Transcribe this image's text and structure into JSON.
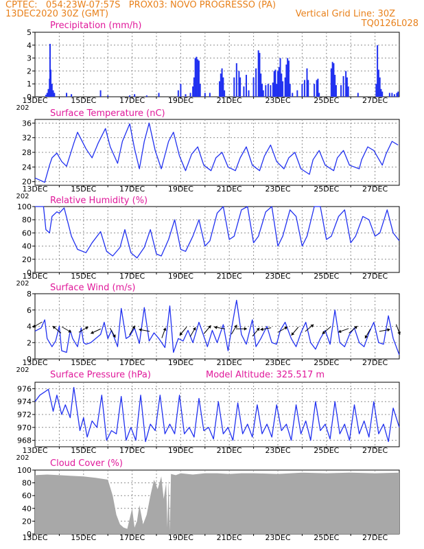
{
  "header": {
    "left_line1": "CPTEC:   054:23W-07:57S   PROX03: NOVO PROGRESSO (PA)",
    "left_line2": "13DEC2020 30Z (GMT)",
    "right_line2": "Vertical Grid Line: 30Z",
    "right_line3": "TQ0126L028",
    "year_fragment": "202"
  },
  "colors": {
    "header": "#e8801a",
    "title": "#e0189a",
    "series": "#2030f0",
    "cloud": "#a8a8a8",
    "grid": "#8c8c8c"
  },
  "x_axis": {
    "tick_labels": [
      "13DEC",
      "15DEC",
      "17DEC",
      "19DEC",
      "21DEC",
      "23DEC",
      "25DEC",
      "27DEC"
    ],
    "tick_days": [
      0,
      2,
      4,
      6,
      8,
      10,
      12,
      14
    ],
    "days_shown": 15
  },
  "chart_data": [
    {
      "type": "bar",
      "id": "precip",
      "title": "Precipitation  (mm/h)",
      "ylim": [
        0,
        5
      ],
      "yticks": [
        "0",
        "1",
        "2",
        "3",
        "4",
        "5"
      ],
      "x_unit": "days after 13DEC 00Z",
      "values": [
        [
          0.45,
          0.15
        ],
        [
          0.5,
          0.3
        ],
        [
          0.55,
          0.6
        ],
        [
          0.6,
          1.4
        ],
        [
          0.62,
          4.1
        ],
        [
          0.65,
          2.1
        ],
        [
          0.7,
          1.0
        ],
        [
          0.75,
          0.5
        ],
        [
          0.8,
          0.3
        ],
        [
          1.3,
          0.3
        ],
        [
          1.5,
          0.2
        ],
        [
          2.7,
          0.5
        ],
        [
          3.0,
          0.1
        ],
        [
          3.9,
          0.1
        ],
        [
          4.1,
          0.2
        ],
        [
          4.6,
          0.1
        ],
        [
          5.1,
          0.3
        ],
        [
          5.9,
          0.5
        ],
        [
          6.0,
          1.0
        ],
        [
          6.2,
          0.2
        ],
        [
          6.4,
          0.3
        ],
        [
          6.5,
          0.8
        ],
        [
          6.55,
          1.5
        ],
        [
          6.6,
          3.0
        ],
        [
          6.65,
          3.1
        ],
        [
          6.7,
          2.9
        ],
        [
          6.75,
          2.8
        ],
        [
          6.8,
          1.0
        ],
        [
          7.0,
          0.3
        ],
        [
          7.2,
          0.3
        ],
        [
          7.6,
          1.2
        ],
        [
          7.65,
          1.8
        ],
        [
          7.7,
          2.2
        ],
        [
          7.75,
          1.5
        ],
        [
          7.8,
          0.5
        ],
        [
          8.2,
          1.5
        ],
        [
          8.3,
          2.6
        ],
        [
          8.4,
          2.0
        ],
        [
          8.45,
          1.5
        ],
        [
          8.6,
          0.8
        ],
        [
          8.7,
          1.7
        ],
        [
          8.8,
          0.5
        ],
        [
          9.0,
          1.5
        ],
        [
          9.1,
          2.2
        ],
        [
          9.2,
          3.6
        ],
        [
          9.25,
          3.4
        ],
        [
          9.3,
          1.8
        ],
        [
          9.35,
          1.0
        ],
        [
          9.4,
          0.5
        ],
        [
          9.5,
          0.9
        ],
        [
          9.6,
          1.0
        ],
        [
          9.7,
          0.9
        ],
        [
          9.8,
          1.1
        ],
        [
          9.85,
          2.0
        ],
        [
          9.9,
          2.1
        ],
        [
          9.95,
          1.0
        ],
        [
          10.0,
          2.0
        ],
        [
          10.05,
          2.3
        ],
        [
          10.1,
          3.0
        ],
        [
          10.15,
          1.8
        ],
        [
          10.2,
          1.2
        ],
        [
          10.3,
          1.5
        ],
        [
          10.35,
          2.5
        ],
        [
          10.4,
          3.0
        ],
        [
          10.45,
          2.8
        ],
        [
          10.5,
          1.0
        ],
        [
          10.6,
          0.3
        ],
        [
          10.8,
          0.5
        ],
        [
          11.0,
          1.0
        ],
        [
          11.1,
          1.3
        ],
        [
          11.2,
          2.2
        ],
        [
          11.25,
          1.3
        ],
        [
          11.5,
          1.0
        ],
        [
          11.6,
          1.3
        ],
        [
          11.65,
          1.4
        ],
        [
          11.7,
          0.3
        ],
        [
          12.2,
          2.2
        ],
        [
          12.25,
          2.7
        ],
        [
          12.3,
          2.6
        ],
        [
          12.35,
          1.7
        ],
        [
          12.4,
          0.9
        ],
        [
          12.6,
          0.9
        ],
        [
          12.7,
          1.6
        ],
        [
          12.8,
          2.0
        ],
        [
          12.85,
          1.5
        ],
        [
          12.9,
          0.8
        ],
        [
          13.3,
          0.3
        ],
        [
          14.05,
          1.0
        ],
        [
          14.1,
          4.0
        ],
        [
          14.15,
          2.1
        ],
        [
          14.2,
          1.5
        ],
        [
          14.25,
          0.6
        ],
        [
          14.3,
          0.4
        ],
        [
          14.6,
          0.3
        ],
        [
          14.7,
          0.3
        ],
        [
          14.8,
          0.2
        ],
        [
          14.9,
          0.3
        ],
        [
          14.95,
          0.4
        ]
      ]
    },
    {
      "type": "line",
      "id": "temp",
      "title": "Surface Temperature (nC)",
      "ylim": [
        19,
        37
      ],
      "yticks": [
        "20",
        "24",
        "28",
        "32",
        "36"
      ],
      "x": [
        0,
        0.4,
        0.6,
        0.7,
        0.9,
        1.1,
        1.3,
        1.6,
        1.75,
        2.1,
        2.35,
        2.6,
        2.9,
        3.1,
        3.4,
        3.6,
        3.9,
        4.1,
        4.3,
        4.5,
        4.7,
        4.95,
        5.2,
        5.5,
        5.7,
        5.95,
        6.2,
        6.45,
        6.7,
        6.95,
        7.25,
        7.45,
        7.7,
        7.95,
        8.25,
        8.45,
        8.7,
        8.95,
        9.25,
        9.45,
        9.7,
        9.95,
        10.25,
        10.45,
        10.7,
        10.95,
        11.3,
        11.45,
        11.7,
        11.95,
        12.3,
        12.45,
        12.7,
        12.95,
        13.35,
        13.45,
        13.7,
        13.95,
        14.3,
        14.45,
        14.7,
        14.95
      ],
      "values": [
        21.0,
        19.8,
        24.5,
        26.5,
        27.8,
        25.5,
        24.2,
        30.5,
        33.5,
        29.0,
        26.5,
        30.5,
        34.5,
        29.5,
        25.0,
        31.0,
        35.8,
        29.0,
        23.5,
        31.0,
        36.0,
        28.5,
        23.5,
        31.0,
        33.5,
        27.0,
        23.0,
        27.5,
        29.5,
        24.5,
        23.0,
        26.5,
        28.0,
        24.0,
        23.0,
        26.5,
        29.5,
        24.5,
        23.0,
        27.0,
        30.0,
        25.5,
        23.5,
        26.5,
        28.0,
        23.5,
        22.0,
        26.0,
        28.5,
        24.5,
        23.0,
        26.5,
        28.5,
        24.5,
        23.5,
        26.0,
        29.5,
        28.5,
        24.5,
        27.5,
        31.0,
        30.0
      ]
    },
    {
      "type": "line",
      "id": "rh",
      "title": "Relative Humidity  (%)",
      "ylim": [
        0,
        100
      ],
      "yticks": [
        "0",
        "20",
        "40",
        "60",
        "80",
        "100"
      ],
      "x": [
        0,
        0.35,
        0.45,
        0.6,
        0.7,
        0.9,
        1.0,
        1.2,
        1.5,
        1.75,
        2.1,
        2.35,
        2.7,
        2.95,
        3.2,
        3.5,
        3.7,
        3.95,
        4.2,
        4.5,
        4.75,
        5.0,
        5.2,
        5.5,
        5.75,
        6.0,
        6.2,
        6.5,
        6.75,
        7.0,
        7.2,
        7.5,
        7.75,
        8.0,
        8.2,
        8.5,
        8.75,
        9.0,
        9.2,
        9.5,
        9.75,
        10.0,
        10.2,
        10.5,
        10.75,
        11.0,
        11.2,
        11.5,
        11.75,
        12.0,
        12.2,
        12.5,
        12.75,
        13.0,
        13.2,
        13.5,
        13.75,
        14.0,
        14.2,
        14.5,
        14.75,
        15.0
      ],
      "values": [
        100,
        100,
        65,
        60,
        85,
        92,
        90,
        98,
        55,
        35,
        30,
        45,
        62,
        32,
        25,
        38,
        65,
        30,
        22,
        38,
        65,
        28,
        25,
        50,
        80,
        35,
        32,
        55,
        80,
        40,
        48,
        90,
        100,
        50,
        55,
        95,
        100,
        45,
        55,
        92,
        100,
        40,
        55,
        95,
        85,
        40,
        55,
        100,
        100,
        50,
        55,
        85,
        95,
        45,
        55,
        85,
        80,
        55,
        60,
        95,
        60,
        48
      ]
    },
    {
      "type": "line",
      "id": "wind",
      "title": "Surface Wind  (m/s)",
      "ylim": [
        0,
        8
      ],
      "yticks": [
        "0",
        "2",
        "4",
        "6",
        "8"
      ],
      "x": [
        0,
        0.25,
        0.4,
        0.5,
        0.7,
        0.85,
        1.0,
        1.1,
        1.3,
        1.45,
        1.55,
        1.75,
        1.9,
        2.0,
        2.1,
        2.3,
        2.5,
        2.7,
        2.85,
        3.0,
        3.15,
        3.4,
        3.55,
        3.75,
        3.9,
        4.1,
        4.3,
        4.5,
        4.7,
        4.9,
        5.1,
        5.35,
        5.55,
        5.7,
        5.9,
        6.1,
        6.3,
        6.5,
        6.75,
        6.95,
        7.1,
        7.3,
        7.5,
        7.75,
        7.95,
        8.1,
        8.3,
        8.5,
        8.7,
        8.95,
        9.1,
        9.3,
        9.55,
        9.75,
        9.95,
        10.1,
        10.3,
        10.55,
        10.75,
        10.95,
        11.15,
        11.35,
        11.55,
        11.75,
        11.95,
        12.15,
        12.35,
        12.55,
        12.75,
        12.95,
        13.15,
        13.35,
        13.55,
        13.75,
        13.95,
        14.15,
        14.35,
        14.55,
        14.75,
        15.0
      ],
      "values": [
        3.4,
        3.8,
        4.8,
        2.5,
        1.5,
        2.2,
        4.0,
        1.0,
        0.8,
        3.5,
        2.5,
        1.5,
        3.8,
        2.0,
        1.8,
        2.0,
        2.5,
        3.0,
        4.5,
        2.5,
        3.5,
        1.5,
        6.2,
        2.5,
        2.8,
        3.8,
        1.9,
        6.3,
        2.2,
        3.2,
        2.5,
        1.4,
        6.5,
        0.8,
        2.5,
        2.2,
        3.5,
        2.0,
        4.5,
        2.8,
        1.5,
        3.5,
        2.0,
        4.2,
        1.0,
        3.8,
        7.2,
        3.0,
        1.8,
        4.8,
        1.5,
        2.5,
        4.0,
        2.0,
        1.8,
        3.5,
        4.5,
        2.5,
        1.5,
        3.2,
        4.5,
        2.0,
        1.2,
        2.5,
        3.5,
        1.8,
        6.0,
        2.0,
        1.5,
        3.0,
        3.8,
        2.0,
        1.5,
        3.2,
        4.5,
        2.0,
        1.8,
        5.3,
        2.5,
        0.5
      ],
      "arrows": [
        [
          0.1,
          4.2,
          210
        ],
        [
          0.9,
          3.6,
          140
        ],
        [
          1.3,
          3.6,
          330
        ],
        [
          2.0,
          3.6,
          30
        ],
        [
          2.5,
          3.4,
          205
        ],
        [
          3.2,
          3.2,
          300
        ],
        [
          4.0,
          3.5,
          60
        ],
        [
          4.5,
          3.5,
          170
        ],
        [
          5.3,
          3.2,
          70
        ],
        [
          6.1,
          3.4,
          230
        ],
        [
          6.5,
          3.3,
          60
        ],
        [
          7.1,
          3.6,
          50
        ],
        [
          7.6,
          3.8,
          170
        ],
        [
          8.2,
          3.6,
          60
        ],
        [
          8.5,
          3.7,
          0
        ],
        [
          9.1,
          3.3,
          50
        ],
        [
          9.5,
          3.7,
          190
        ],
        [
          10.2,
          3.6,
          30
        ],
        [
          10.7,
          3.4,
          230
        ],
        [
          11.3,
          3.8,
          40
        ],
        [
          12.0,
          3.5,
          220
        ],
        [
          12.7,
          3.5,
          200
        ],
        [
          13.1,
          3.6,
          40
        ],
        [
          13.7,
          3.1,
          240
        ],
        [
          14.4,
          3.5,
          10
        ],
        [
          14.95,
          3.6,
          290
        ]
      ]
    },
    {
      "type": "line",
      "id": "pres",
      "title": "Surface Pressure (hPa)",
      "annotation": "Model Altitude: 325.517  m",
      "ylim": [
        967,
        977
      ],
      "yticks": [
        "968",
        "970",
        "972",
        "974",
        "976"
      ],
      "x": [
        0,
        0.2,
        0.4,
        0.55,
        0.75,
        0.9,
        1.1,
        1.25,
        1.45,
        1.6,
        1.85,
        2.0,
        2.15,
        2.35,
        2.55,
        2.75,
        2.95,
        3.15,
        3.35,
        3.55,
        3.75,
        3.95,
        4.15,
        4.35,
        4.55,
        4.75,
        4.95,
        5.15,
        5.35,
        5.55,
        5.75,
        5.95,
        6.15,
        6.35,
        6.55,
        6.75,
        6.95,
        7.15,
        7.35,
        7.55,
        7.75,
        7.95,
        8.15,
        8.35,
        8.55,
        8.75,
        8.95,
        9.15,
        9.35,
        9.55,
        9.75,
        9.95,
        10.15,
        10.35,
        10.55,
        10.75,
        10.95,
        11.15,
        11.35,
        11.55,
        11.75,
        11.95,
        12.15,
        12.35,
        12.55,
        12.75,
        12.95,
        13.15,
        13.35,
        13.55,
        13.75,
        13.95,
        14.15,
        14.35,
        14.55,
        14.75,
        15.0
      ],
      "values": [
        974.0,
        975.0,
        975.5,
        975.9,
        972.5,
        975.0,
        972.0,
        973.5,
        971.5,
        976.2,
        969.5,
        971.5,
        968.5,
        971.0,
        970.0,
        975.0,
        968.0,
        969.5,
        969.0,
        974.8,
        968.0,
        970.0,
        968.0,
        975.0,
        967.8,
        970.5,
        969.5,
        975.0,
        969.0,
        970.5,
        969.0,
        975.0,
        969.0,
        970.0,
        968.5,
        974.5,
        969.5,
        970.0,
        968.2,
        974.0,
        969.0,
        970.0,
        968.0,
        973.8,
        969.0,
        970.5,
        968.5,
        973.5,
        969.0,
        970.5,
        968.5,
        973.5,
        969.5,
        970.5,
        968.0,
        973.5,
        969.0,
        971.0,
        968.0,
        974.0,
        969.5,
        970.5,
        968.2,
        974.0,
        969.0,
        970.5,
        968.0,
        973.5,
        969.0,
        971.0,
        968.5,
        974.0,
        969.0,
        970.5,
        967.8,
        973.0,
        970.0
      ]
    },
    {
      "type": "area",
      "id": "cloud",
      "title": "Cloud Cover  (%)",
      "ylim": [
        0,
        100
      ],
      "yticks": [
        "0",
        "20",
        "40",
        "60",
        "80",
        "100"
      ],
      "x": [
        0,
        0.5,
        1.0,
        1.5,
        2.0,
        2.5,
        3.0,
        3.2,
        3.35,
        3.5,
        3.65,
        3.8,
        4.0,
        4.1,
        4.2,
        4.3,
        4.45,
        4.6,
        4.75,
        4.9,
        5.05,
        5.2,
        5.3,
        5.4,
        5.45,
        5.5,
        5.55,
        5.6,
        5.8,
        6.0,
        6.5,
        7.0,
        7.5,
        8.0,
        8.5,
        9.0,
        10.0,
        11.0,
        12.0,
        13.0,
        14.0,
        15.0
      ],
      "values": [
        92,
        93,
        92,
        91,
        90,
        88,
        85,
        60,
        30,
        15,
        10,
        8,
        40,
        10,
        20,
        45,
        15,
        30,
        60,
        85,
        70,
        90,
        55,
        80,
        10,
        85,
        5,
        94,
        92,
        95,
        93,
        95,
        95,
        94,
        95,
        95,
        94,
        96,
        95,
        96,
        95,
        96
      ]
    }
  ]
}
